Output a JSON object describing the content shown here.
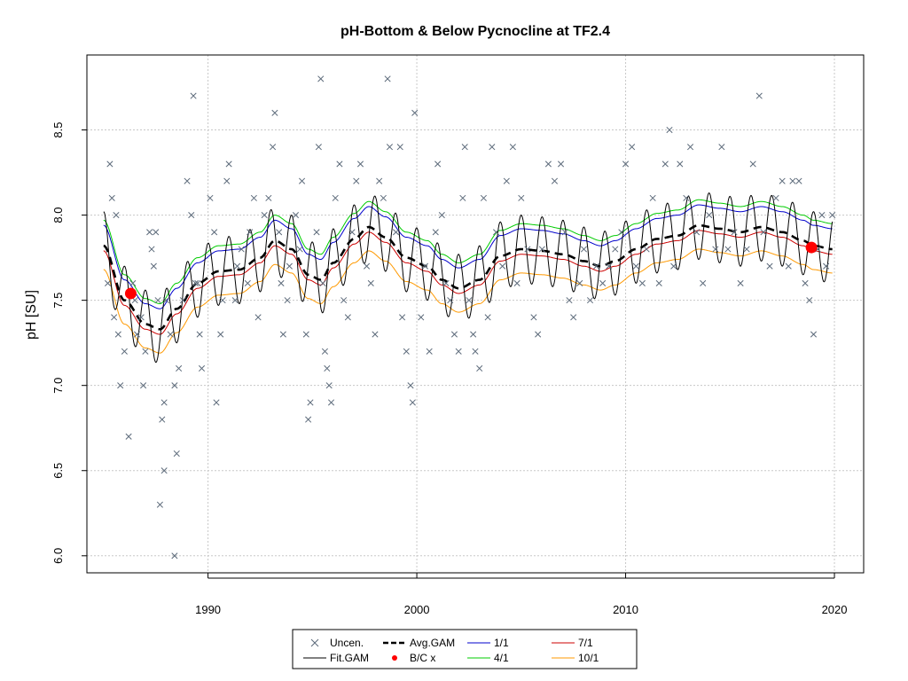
{
  "chart_data": {
    "type": "scatter",
    "title": "pH-Bottom & Below Pycnocline at TF2.4",
    "ylabel": "pH [SU]",
    "xlabel": "",
    "xlim": [
      1984.2,
      2021.4
    ],
    "ylim": [
      5.9,
      8.94
    ],
    "x_ticks": [
      1990,
      2000,
      2010,
      2020
    ],
    "y_ticks": [
      6.0,
      6.5,
      7.0,
      7.5,
      8.0,
      8.5
    ],
    "grid": true,
    "legend_position": "bottom",
    "colors": {
      "uncen": "#5c6a7a",
      "fit_gam": "#000000",
      "avg_gam": "#000000",
      "bc": "#ff0000",
      "s1_1": "#0000cc",
      "s4_1": "#00cc00",
      "s7_1": "#cc0000",
      "s10_1": "#ff9900",
      "grid": "#c8c8c8"
    },
    "legend": [
      {
        "key": "uncen",
        "label": "Uncen.",
        "symbol": "x"
      },
      {
        "key": "avg_gam",
        "label": "Avg.GAM",
        "symbol": "dash"
      },
      {
        "key": "s1_1",
        "label": "1/1",
        "symbol": "line"
      },
      {
        "key": "s7_1",
        "label": "7/1",
        "symbol": "line"
      },
      {
        "key": "fit_gam",
        "label": "Fit.GAM",
        "symbol": "line"
      },
      {
        "key": "bc",
        "label": "B/C x",
        "symbol": "dot"
      },
      {
        "key": "s4_1",
        "label": "4/1",
        "symbol": "line"
      },
      {
        "key": "s10_1",
        "label": "10/1",
        "symbol": "line"
      }
    ],
    "baseline_x": [
      1985.0,
      1986.0,
      1987.0,
      1987.7,
      1988.5,
      1989.5,
      1990.5,
      1991.5,
      1992.5,
      1993.2,
      1994.0,
      1994.8,
      1995.4,
      1996.0,
      1997.0,
      1997.7,
      1998.5,
      1999.5,
      2000.5,
      2001.2,
      2002.0,
      2003.0,
      2004.0,
      2005.0,
      2006.0,
      2007.0,
      2008.0,
      2008.8,
      2009.5,
      2010.5,
      2011.5,
      2012.5,
      2013.5,
      2014.5,
      2015.5,
      2016.5,
      2017.5,
      2018.5,
      2019.0,
      2019.9
    ],
    "avg_gam": [
      7.82,
      7.5,
      7.36,
      7.33,
      7.45,
      7.6,
      7.67,
      7.68,
      7.75,
      7.85,
      7.8,
      7.65,
      7.62,
      7.72,
      7.86,
      7.93,
      7.87,
      7.75,
      7.7,
      7.62,
      7.57,
      7.62,
      7.76,
      7.8,
      7.79,
      7.77,
      7.73,
      7.7,
      7.73,
      7.8,
      7.86,
      7.88,
      7.94,
      7.92,
      7.9,
      7.93,
      7.9,
      7.85,
      7.82,
      7.8
    ],
    "seasonal_offsets": {
      "s1_1": 0.12,
      "s4_1": 0.15,
      "s7_1": -0.03,
      "s10_1": -0.14
    },
    "fit_gam_amplitude": 0.2,
    "bc_points": [
      {
        "x": 1986.3,
        "y": 7.54
      },
      {
        "x": 2018.9,
        "y": 7.81
      }
    ],
    "uncen_points": [
      [
        1985.3,
        8.3
      ],
      [
        1985.4,
        8.1
      ],
      [
        1985.2,
        7.6
      ],
      [
        1985.5,
        7.4
      ],
      [
        1985.6,
        8.0
      ],
      [
        1985.7,
        7.3
      ],
      [
        1985.8,
        7.0
      ],
      [
        1986.0,
        7.2
      ],
      [
        1986.2,
        6.7
      ],
      [
        1986.4,
        7.6
      ],
      [
        1986.5,
        7.5
      ],
      [
        1986.6,
        7.3
      ],
      [
        1986.8,
        7.4
      ],
      [
        1986.9,
        7.0
      ],
      [
        1987.0,
        7.2
      ],
      [
        1987.2,
        7.9
      ],
      [
        1987.3,
        7.8
      ],
      [
        1987.4,
        7.7
      ],
      [
        1987.5,
        7.9
      ],
      [
        1987.6,
        7.5
      ],
      [
        1987.8,
        6.8
      ],
      [
        1987.9,
        6.5
      ],
      [
        1987.7,
        6.3
      ],
      [
        1987.9,
        6.9
      ],
      [
        1988.0,
        7.5
      ],
      [
        1988.2,
        7.3
      ],
      [
        1988.4,
        7.0
      ],
      [
        1988.5,
        6.6
      ],
      [
        1988.6,
        7.1
      ],
      [
        1988.4,
        6.0
      ],
      [
        1988.8,
        7.5
      ],
      [
        1989.0,
        8.2
      ],
      [
        1989.2,
        8.0
      ],
      [
        1989.3,
        8.7
      ],
      [
        1989.4,
        7.6
      ],
      [
        1989.6,
        7.3
      ],
      [
        1989.7,
        7.1
      ],
      [
        1989.5,
        7.6
      ],
      [
        1990.1,
        8.1
      ],
      [
        1990.3,
        7.9
      ],
      [
        1990.4,
        6.9
      ],
      [
        1990.6,
        7.3
      ],
      [
        1990.7,
        7.5
      ],
      [
        1990.9,
        8.2
      ],
      [
        1991.0,
        8.3
      ],
      [
        1991.3,
        7.5
      ],
      [
        1991.4,
        7.7
      ],
      [
        1991.6,
        7.8
      ],
      [
        1991.9,
        7.6
      ],
      [
        1992.0,
        7.9
      ],
      [
        1992.2,
        8.1
      ],
      [
        1992.4,
        7.4
      ],
      [
        1992.7,
        8.0
      ],
      [
        1992.9,
        8.1
      ],
      [
        1993.1,
        8.4
      ],
      [
        1993.2,
        8.6
      ],
      [
        1993.4,
        7.9
      ],
      [
        1993.5,
        7.6
      ],
      [
        1993.6,
        7.3
      ],
      [
        1993.8,
        7.5
      ],
      [
        1993.9,
        7.7
      ],
      [
        1994.2,
        8.0
      ],
      [
        1994.4,
        7.8
      ],
      [
        1994.5,
        8.2
      ],
      [
        1994.7,
        7.3
      ],
      [
        1994.8,
        6.8
      ],
      [
        1994.9,
        6.9
      ],
      [
        1995.2,
        7.9
      ],
      [
        1995.3,
        8.4
      ],
      [
        1995.4,
        8.8
      ],
      [
        1995.5,
        7.6
      ],
      [
        1995.6,
        7.2
      ],
      [
        1995.7,
        7.1
      ],
      [
        1995.8,
        7.0
      ],
      [
        1995.9,
        6.9
      ],
      [
        1996.1,
        8.1
      ],
      [
        1996.3,
        8.3
      ],
      [
        1996.5,
        7.5
      ],
      [
        1996.7,
        7.4
      ],
      [
        1996.9,
        7.9
      ],
      [
        1997.1,
        8.2
      ],
      [
        1997.3,
        8.3
      ],
      [
        1997.6,
        7.7
      ],
      [
        1997.8,
        7.6
      ],
      [
        1998.0,
        7.3
      ],
      [
        1998.2,
        8.2
      ],
      [
        1998.4,
        8.1
      ],
      [
        1998.6,
        8.8
      ],
      [
        1998.7,
        8.4
      ],
      [
        1999.0,
        7.9
      ],
      [
        1999.2,
        8.4
      ],
      [
        1999.3,
        7.4
      ],
      [
        1999.5,
        7.2
      ],
      [
        1999.7,
        7.0
      ],
      [
        1999.8,
        6.9
      ],
      [
        1999.9,
        8.6
      ],
      [
        2000.2,
        7.4
      ],
      [
        2000.4,
        7.7
      ],
      [
        2000.6,
        7.2
      ],
      [
        2000.9,
        7.9
      ],
      [
        2001.0,
        8.3
      ],
      [
        2001.2,
        8.0
      ],
      [
        2001.4,
        7.6
      ],
      [
        2001.6,
        7.5
      ],
      [
        2001.8,
        7.3
      ],
      [
        2002.0,
        7.2
      ],
      [
        2002.2,
        8.1
      ],
      [
        2002.3,
        8.4
      ],
      [
        2002.5,
        7.5
      ],
      [
        2002.7,
        7.3
      ],
      [
        2002.8,
        7.2
      ],
      [
        2003.0,
        7.1
      ],
      [
        2003.2,
        8.1
      ],
      [
        2003.4,
        7.4
      ],
      [
        2003.6,
        8.4
      ],
      [
        2003.8,
        7.9
      ],
      [
        2004.1,
        7.7
      ],
      [
        2004.3,
        8.2
      ],
      [
        2004.6,
        8.4
      ],
      [
        2004.8,
        7.6
      ],
      [
        2005.0,
        8.1
      ],
      [
        2005.3,
        7.8
      ],
      [
        2005.6,
        7.4
      ],
      [
        2005.8,
        7.3
      ],
      [
        2006.0,
        7.8
      ],
      [
        2006.3,
        8.3
      ],
      [
        2006.6,
        8.2
      ],
      [
        2006.9,
        8.3
      ],
      [
        2007.1,
        7.9
      ],
      [
        2007.3,
        7.5
      ],
      [
        2007.5,
        7.4
      ],
      [
        2007.8,
        7.6
      ],
      [
        2008.0,
        7.8
      ],
      [
        2008.3,
        7.5
      ],
      [
        2008.6,
        7.7
      ],
      [
        2008.9,
        7.6
      ],
      [
        2009.2,
        7.7
      ],
      [
        2009.5,
        7.8
      ],
      [
        2009.8,
        7.9
      ],
      [
        2010.0,
        8.3
      ],
      [
        2010.3,
        8.4
      ],
      [
        2010.5,
        7.7
      ],
      [
        2010.8,
        7.6
      ],
      [
        2011.0,
        7.8
      ],
      [
        2011.3,
        8.1
      ],
      [
        2011.6,
        7.6
      ],
      [
        2011.9,
        8.3
      ],
      [
        2012.1,
        8.5
      ],
      [
        2012.3,
        7.7
      ],
      [
        2012.6,
        8.3
      ],
      [
        2012.9,
        8.1
      ],
      [
        2013.1,
        8.4
      ],
      [
        2013.4,
        7.9
      ],
      [
        2013.7,
        7.6
      ],
      [
        2014.0,
        8.0
      ],
      [
        2014.3,
        7.8
      ],
      [
        2014.6,
        8.4
      ],
      [
        2014.9,
        7.8
      ],
      [
        2015.2,
        7.9
      ],
      [
        2015.5,
        7.6
      ],
      [
        2015.8,
        7.8
      ],
      [
        2016.1,
        8.3
      ],
      [
        2016.4,
        8.7
      ],
      [
        2016.6,
        7.9
      ],
      [
        2016.9,
        7.7
      ],
      [
        2017.2,
        8.1
      ],
      [
        2017.5,
        8.2
      ],
      [
        2017.8,
        7.7
      ],
      [
        2018.0,
        8.2
      ],
      [
        2018.3,
        8.2
      ],
      [
        2018.6,
        7.6
      ],
      [
        2018.8,
        7.5
      ],
      [
        2019.0,
        7.3
      ],
      [
        2019.2,
        7.8
      ],
      [
        2019.4,
        8.0
      ],
      [
        2019.6,
        7.7
      ],
      [
        2019.9,
        8.0
      ]
    ]
  }
}
